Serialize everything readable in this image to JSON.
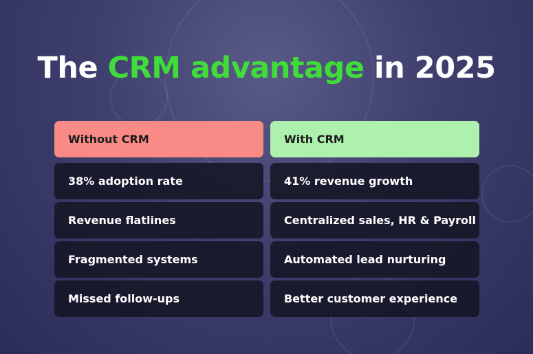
{
  "title": {
    "before": "The",
    "highlight": "CRM advantage",
    "after": "in 2025"
  },
  "columns": [
    {
      "header": "Without CRM",
      "items": [
        "38% adoption rate",
        "Revenue flatlines",
        "Fragmented systems",
        "Missed follow-ups"
      ]
    },
    {
      "header": "With CRM",
      "items": [
        "41% revenue growth",
        "Centralized sales, HR & Payroll",
        "Automated lead nurturing",
        "Better customer experience"
      ]
    }
  ]
}
